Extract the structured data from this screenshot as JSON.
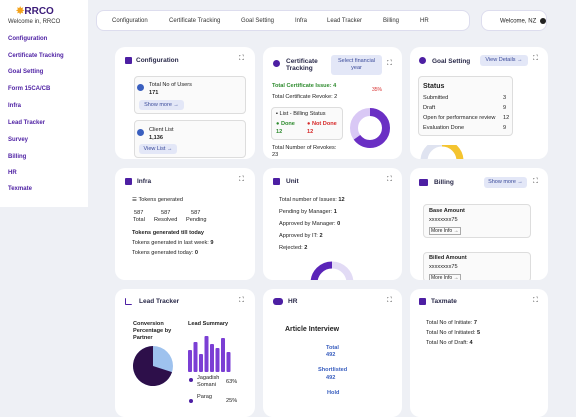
{
  "sidebar": {
    "logo_text": "RRCO",
    "welcome": "Welcome in, RRCO",
    "items": [
      "Configuration",
      "Certificate Tracking",
      "Goal Setting",
      "Form 15CA/CB",
      "Infra",
      "Lead Tracker",
      "Survey",
      "Billing",
      "HR",
      "Texmate"
    ]
  },
  "topnav": {
    "items": [
      "Configuration",
      "Certificate Tracking",
      "Goal Setting",
      "Infra",
      "Lead Tracker",
      "Billing",
      "HR"
    ],
    "welcome": "Welcome, NZ"
  },
  "configuration": {
    "title": "Configuration",
    "users_label": "Total No of Users",
    "users_value": "171",
    "show_more": "Show more →",
    "clients_label": "Client List",
    "clients_value": "1,136",
    "view_list": "View List →"
  },
  "certificate": {
    "title_line1": "Certificate",
    "title_line2": "Tracking",
    "select_year_line1": "Select financial",
    "select_year_line2": "year",
    "issue_label": "Total Certificate Issue: 4",
    "percent": "35%",
    "revoke_label": "Total Certificate Revoke: 2",
    "billing_status": "List - Billing Status",
    "done_label": "Done",
    "done_value": "12",
    "notdone_label": "Not Done",
    "notdone_value": "12",
    "revokes_label": "Total Number of Revokes:",
    "revokes_value": "23",
    "donut_fraction": 0.65
  },
  "goal": {
    "title": "Goal Setting",
    "view_details": "View Details →",
    "status_title": "Status",
    "rows": [
      {
        "label": "Submitted",
        "value": "3"
      },
      {
        "label": "Draft",
        "value": "9"
      },
      {
        "label": "Open for performance review",
        "value": "12"
      },
      {
        "label": "Evaluation Done",
        "value": "9"
      }
    ]
  },
  "infra": {
    "title": "Infra",
    "tokens_label": "Tokens generated",
    "cols": [
      {
        "value": "587",
        "label": "Total"
      },
      {
        "value": "587",
        "label": "Resolved"
      },
      {
        "value": "587",
        "label": "Pending"
      }
    ],
    "till_today": "Tokens generated till today",
    "last_week": "Tokens generated in last week:",
    "last_week_value": "9",
    "today": "Tokens generated today:",
    "today_value": "0"
  },
  "unit": {
    "title": "Unit",
    "rows": [
      {
        "label": "Total number of Issues:",
        "value": "12"
      },
      {
        "label": "Pending by Manager:",
        "value": "1"
      },
      {
        "label": "Approved by Manager:",
        "value": "0"
      },
      {
        "label": "Approved by IT:",
        "value": "2"
      },
      {
        "label": "Rejected:",
        "value": "2"
      }
    ]
  },
  "billing": {
    "title": "Billing",
    "show_more": "Show more →",
    "base_label": "Base Amount",
    "base_value": "xxxxxxxx75",
    "more_info": "More Info →",
    "billed_label": "Billed Amount",
    "billed_value": "xxxxxxxx75"
  },
  "lead": {
    "title": "Lead Tracker",
    "conv_line1": "Conversion",
    "conv_line2": "Percentage by",
    "conv_line3": "Partner",
    "summary": "Lead Summary",
    "person1_line1": "Jagadish",
    "person1_line2": "Somani",
    "person1_pct": "63%",
    "person2": "Parag",
    "person2_pct": "25%",
    "bar_values": [
      0.55,
      0.75,
      0.45,
      0.9,
      0.7,
      0.6,
      0.85,
      0.5
    ],
    "pie_fraction": 0.7
  },
  "hr": {
    "title": "HR",
    "interview_title": "Article Interview",
    "total_label": "Total",
    "total_value": "492",
    "shortlisted_label": "Shortlisted",
    "shortlisted_value": "492",
    "hold_label": "Hold"
  },
  "texmate": {
    "title": "Taxmate",
    "rows": [
      {
        "label": "Total No of Initiate:",
        "value": "7"
      },
      {
        "label": "Total No of Initiated:",
        "value": "5"
      },
      {
        "label": "Total No of Draft:",
        "value": "4"
      }
    ]
  },
  "colors": {
    "accent": "#4d1fa3",
    "light_purple": "#c9b6f0",
    "green": "#2e8b2e",
    "red": "#d62828",
    "yellow": "#f4c430"
  }
}
